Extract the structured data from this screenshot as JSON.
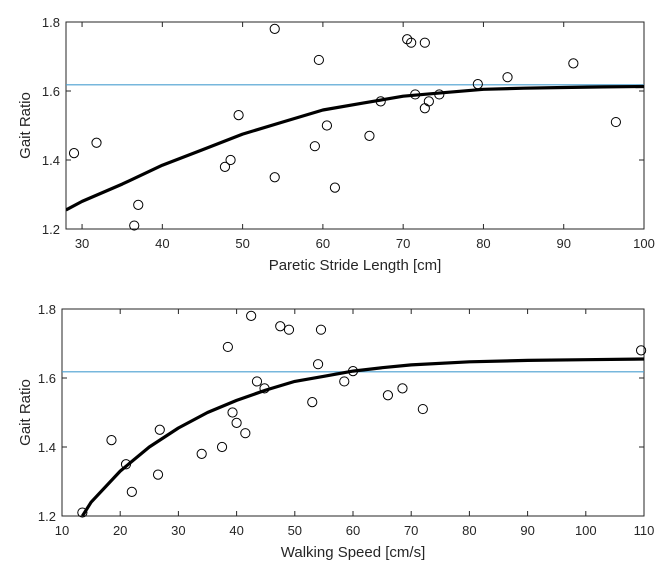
{
  "colors": {
    "reference_line": "#4a9fd0",
    "fit_line": "#000000",
    "marker_edge": "#000000",
    "axis": "#262626"
  },
  "chart_data": [
    {
      "type": "scatter",
      "xlabel": "Paretic Stride Length [cm]",
      "ylabel": "Gait Ratio",
      "xlim": [
        28,
        100
      ],
      "ylim": [
        1.2,
        1.8
      ],
      "xticks": [
        30,
        40,
        50,
        60,
        70,
        80,
        90,
        100
      ],
      "yticks": [
        1.2,
        1.4,
        1.6,
        1.8
      ],
      "xtick_labels": [
        "30",
        "40",
        "50",
        "60",
        "70",
        "80",
        "90",
        "100"
      ],
      "ytick_labels": [
        "1.2",
        "1.4",
        "1.6",
        "1.8"
      ],
      "reference_line_y": 1.618,
      "grid": false,
      "points": [
        [
          29,
          1.42
        ],
        [
          31.8,
          1.45
        ],
        [
          36.5,
          1.21
        ],
        [
          37,
          1.27
        ],
        [
          47.8,
          1.38
        ],
        [
          48.5,
          1.4
        ],
        [
          49.5,
          1.53
        ],
        [
          54,
          1.78
        ],
        [
          54,
          1.35
        ],
        [
          59,
          1.44
        ],
        [
          59.5,
          1.69
        ],
        [
          60.5,
          1.5
        ],
        [
          61.5,
          1.32
        ],
        [
          65.8,
          1.47
        ],
        [
          67.2,
          1.57
        ],
        [
          70.5,
          1.75
        ],
        [
          71,
          1.74
        ],
        [
          71.5,
          1.59
        ],
        [
          72.7,
          1.74
        ],
        [
          72.7,
          1.55
        ],
        [
          73.2,
          1.57
        ],
        [
          74.5,
          1.59
        ],
        [
          79.3,
          1.62
        ],
        [
          83,
          1.64
        ],
        [
          91.2,
          1.68
        ],
        [
          96.5,
          1.51
        ]
      ],
      "fit_curve": [
        [
          28,
          1.255
        ],
        [
          30,
          1.28
        ],
        [
          35,
          1.33
        ],
        [
          40,
          1.385
        ],
        [
          45,
          1.43
        ],
        [
          50,
          1.475
        ],
        [
          55,
          1.51
        ],
        [
          60,
          1.545
        ],
        [
          65,
          1.565
        ],
        [
          70,
          1.585
        ],
        [
          75,
          1.595
        ],
        [
          80,
          1.605
        ],
        [
          85,
          1.608
        ],
        [
          90,
          1.61
        ],
        [
          95,
          1.612
        ],
        [
          100,
          1.613
        ]
      ]
    },
    {
      "type": "scatter",
      "xlabel": "Walking Speed [cm/s]",
      "ylabel": "Gait Ratio",
      "xlim": [
        10,
        110
      ],
      "ylim": [
        1.2,
        1.8
      ],
      "xticks": [
        10,
        20,
        30,
        40,
        50,
        60,
        70,
        80,
        90,
        100,
        110
      ],
      "yticks": [
        1.2,
        1.4,
        1.6,
        1.8
      ],
      "xtick_labels": [
        "10",
        "20",
        "30",
        "40",
        "50",
        "60",
        "70",
        "80",
        "90",
        "100",
        "110"
      ],
      "ytick_labels": [
        "1.2",
        "1.4",
        "1.6",
        "1.8"
      ],
      "reference_line_y": 1.618,
      "grid": false,
      "points": [
        [
          13.5,
          1.21
        ],
        [
          18.5,
          1.42
        ],
        [
          21,
          1.35
        ],
        [
          22,
          1.27
        ],
        [
          26.5,
          1.32
        ],
        [
          26.8,
          1.45
        ],
        [
          34,
          1.38
        ],
        [
          37.5,
          1.4
        ],
        [
          38.5,
          1.69
        ],
        [
          39.3,
          1.5
        ],
        [
          40,
          1.47
        ],
        [
          41.5,
          1.44
        ],
        [
          42.5,
          1.78
        ],
        [
          43.5,
          1.59
        ],
        [
          44.8,
          1.57
        ],
        [
          47.5,
          1.75
        ],
        [
          49,
          1.74
        ],
        [
          53,
          1.53
        ],
        [
          54,
          1.64
        ],
        [
          54.5,
          1.74
        ],
        [
          58.5,
          1.59
        ],
        [
          60,
          1.62
        ],
        [
          66,
          1.55
        ],
        [
          68.5,
          1.57
        ],
        [
          72,
          1.51
        ],
        [
          109.5,
          1.68
        ]
      ],
      "fit_curve": [
        [
          13.5,
          1.2
        ],
        [
          15,
          1.24
        ],
        [
          20,
          1.33
        ],
        [
          25,
          1.4
        ],
        [
          30,
          1.455
        ],
        [
          35,
          1.5
        ],
        [
          40,
          1.535
        ],
        [
          45,
          1.565
        ],
        [
          50,
          1.59
        ],
        [
          55,
          1.605
        ],
        [
          60,
          1.62
        ],
        [
          65,
          1.63
        ],
        [
          70,
          1.638
        ],
        [
          80,
          1.647
        ],
        [
          90,
          1.651
        ],
        [
          100,
          1.653
        ],
        [
          110,
          1.655
        ]
      ]
    }
  ]
}
